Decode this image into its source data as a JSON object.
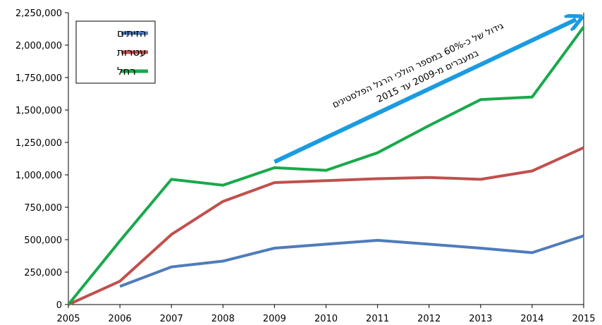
{
  "chart_data": {
    "type": "line",
    "x": [
      "2005",
      "2006",
      "2007",
      "2008",
      "2009",
      "2010",
      "2011",
      "2012",
      "2013",
      "2014",
      "2015"
    ],
    "x_ticks": [
      "2005",
      "2006",
      "2007",
      "2008",
      "2009",
      "2010",
      "2011",
      "2012",
      "2013",
      "2014",
      "2015"
    ],
    "y_ticks": [
      "0",
      "250,000",
      "500,000",
      "750,000",
      "1,000,000",
      "1,250,000",
      "1,500,000",
      "1,750,000",
      "2,000,000",
      "2,250,000"
    ],
    "ylim": [
      0,
      2250000
    ],
    "grid": false,
    "legend_position": "top-left",
    "series": [
      {
        "name": "הזיתים",
        "color": "#4f7cba",
        "values": [
          null,
          140000,
          290000,
          335000,
          435000,
          465000,
          495000,
          465000,
          435000,
          400000,
          530000
        ]
      },
      {
        "name": "עטרות",
        "color": "#c0504d",
        "values": [
          0,
          180000,
          540000,
          795000,
          940000,
          955000,
          970000,
          980000,
          965000,
          1030000,
          1210000
        ]
      },
      {
        "name": "רחל",
        "color": "#18a94b",
        "values": [
          0,
          490000,
          965000,
          920000,
          1055000,
          1035000,
          1170000,
          1380000,
          1580000,
          1600000,
          2140000
        ]
      }
    ],
    "annotation": {
      "line1": "גידול של כ-60% במספר הולכי הרגל הפלסטינים",
      "line2": "במעברים מ-2009 עד 2015",
      "arrow_color": "#1b9be0",
      "arrow_from": {
        "x": "2009",
        "y": 1100000
      },
      "arrow_to": {
        "x": "2015",
        "y": 2225000
      }
    }
  }
}
